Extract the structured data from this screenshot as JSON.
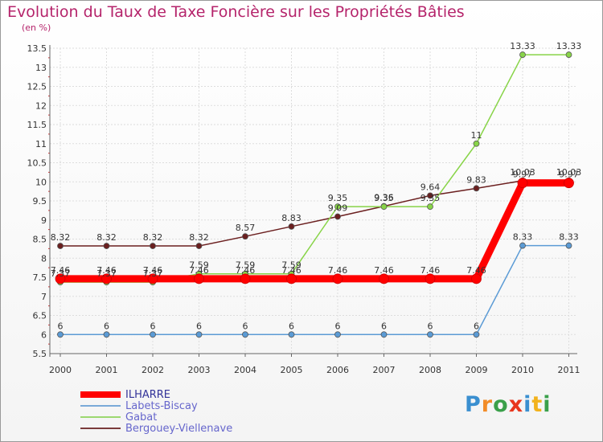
{
  "chart_data": {
    "type": "line",
    "title": "Evolution du Taux de Taxe Foncière sur les Propriétés Bâties",
    "subtitle": "(en %)",
    "xlabel": "",
    "ylabel": "(en %)",
    "categories": [
      "2000",
      "2001",
      "2002",
      "2003",
      "2004",
      "2005",
      "2006",
      "2007",
      "2008",
      "2009",
      "2010",
      "2011"
    ],
    "ylim": [
      5.5,
      13.5
    ],
    "yticks": [
      5.5,
      6,
      6.5,
      7,
      7.5,
      8,
      8.5,
      9,
      9.5,
      10,
      10.5,
      11,
      11.5,
      12,
      12.5,
      13,
      13.5
    ],
    "grid": true,
    "legend_position": "bottom-left",
    "series": [
      {
        "name": "Bergouey-Viellenave",
        "color": "#6b1f1f",
        "values": [
          8.32,
          8.32,
          8.32,
          8.32,
          8.57,
          8.83,
          9.09,
          9.36,
          9.64,
          9.83,
          10.03,
          10.03
        ],
        "labels": [
          "8.32",
          "8.32",
          "8.32",
          "8.32",
          "8.57",
          "8.83",
          "9.09",
          "9.36",
          "9.64",
          "9.83",
          "10.03",
          "10.03"
        ]
      },
      {
        "name": "Gabat",
        "color": "#88d448",
        "values": [
          7.37,
          7.37,
          7.37,
          7.59,
          7.59,
          7.59,
          9.35,
          9.35,
          9.35,
          11,
          13.33,
          13.33
        ],
        "labels": [
          "7.37",
          "7.37",
          "7.37",
          "7.59",
          "7.59",
          "7.59",
          "9.35",
          "9.35",
          "9.35",
          "11",
          "13.33",
          "13.33"
        ]
      },
      {
        "name": "Labets-Biscay",
        "color": "#5b9bd5",
        "values": [
          6,
          6,
          6,
          6,
          6,
          6,
          6,
          6,
          6,
          6,
          8.33,
          8.33
        ],
        "labels": [
          "6",
          "6",
          "6",
          "6",
          "6",
          "6",
          "6",
          "6",
          "6",
          "6",
          "8.33",
          "8.33"
        ]
      },
      {
        "name": "ILHARRE",
        "color": "#ff0000",
        "values": [
          7.46,
          7.46,
          7.46,
          7.46,
          7.46,
          7.46,
          7.46,
          7.46,
          7.46,
          7.46,
          9.97,
          9.97
        ],
        "labels": [
          "7.46",
          "7.46",
          "7.46",
          "7.46",
          "7.46",
          "7.46",
          "7.46",
          "7.46",
          "7.46",
          "7.46",
          "9.97",
          "9.97"
        ]
      }
    ]
  },
  "legend": {
    "items": [
      {
        "label": "ILHARRE",
        "color": "#ff0000",
        "text_color": "#333399"
      },
      {
        "label": "Labets-Biscay",
        "color": "#7aaad8",
        "text_color": "#6666cc"
      },
      {
        "label": "Gabat",
        "color": "#9cd870",
        "text_color": "#6666cc"
      },
      {
        "label": "Bergouey-Viellenave",
        "color": "#7a3a3a",
        "text_color": "#6666cc"
      }
    ]
  },
  "logo": {
    "letters": [
      {
        "char": "P",
        "color": "#3a8fd0"
      },
      {
        "char": "r",
        "color": "#f28c28"
      },
      {
        "char": "o",
        "color": "#3aa04a"
      },
      {
        "char": "x",
        "color": "#e8361d"
      },
      {
        "char": "i",
        "color": "#3a8fd0"
      },
      {
        "char": "t",
        "color": "#f2b21c"
      },
      {
        "char": "i",
        "color": "#3aa04a"
      }
    ]
  }
}
